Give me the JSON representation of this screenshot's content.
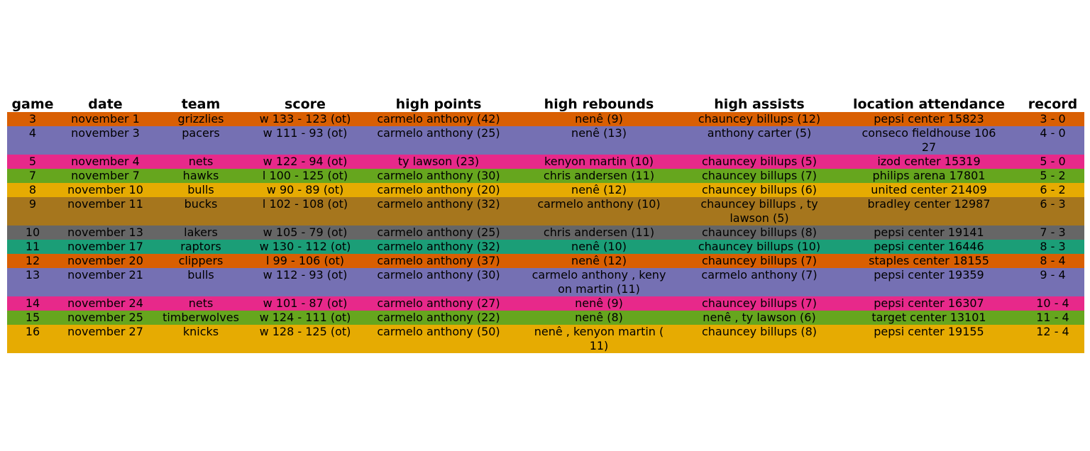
{
  "chart_data": {
    "type": "table",
    "columns": [
      "game",
      "date",
      "team",
      "score",
      "high points",
      "high rebounds",
      "high assists",
      "location attendance",
      "record"
    ],
    "rows": [
      {
        "cells": [
          "3",
          "november 1",
          "grizzlies",
          "w 133 - 123 (ot)",
          "carmelo anthony (42)",
          "nenê (9)",
          "chauncey billups (12)",
          "pepsi center 15823",
          "3 - 0"
        ],
        "color": "#d95f02"
      },
      {
        "cells": [
          "4",
          "november 3",
          "pacers",
          "w 111 - 93 (ot)",
          "carmelo anthony (25)",
          "nenê (13)",
          "anthony carter (5)",
          "conseco fieldhouse 106\n27",
          "4 - 0"
        ],
        "color": "#7570b3"
      },
      {
        "cells": [
          "5",
          "november 4",
          "nets",
          "w 122 - 94 (ot)",
          "ty lawson (23)",
          "kenyon martin (10)",
          "chauncey billups (5)",
          "izod center 15319",
          "5 - 0"
        ],
        "color": "#e7298a"
      },
      {
        "cells": [
          "7",
          "november 7",
          "hawks",
          "l 100 - 125 (ot)",
          "carmelo anthony (30)",
          "chris andersen (11)",
          "chauncey billups (7)",
          "philips arena 17801",
          "5 - 2"
        ],
        "color": "#66a61e"
      },
      {
        "cells": [
          "8",
          "november 10",
          "bulls",
          "w 90 - 89 (ot)",
          "carmelo anthony (20)",
          "nenê (12)",
          "chauncey billups (6)",
          "united center 21409",
          "6 - 2"
        ],
        "color": "#e6ab02"
      },
      {
        "cells": [
          "9",
          "november 11",
          "bucks",
          "l 102 - 108 (ot)",
          "carmelo anthony (32)",
          "carmelo anthony (10)",
          "chauncey billups , ty\nlawson (5)",
          "bradley center 12987",
          "6 - 3"
        ],
        "color": "#a6761d"
      },
      {
        "cells": [
          "10",
          "november 13",
          "lakers",
          "w 105 - 79 (ot)",
          "carmelo anthony (25)",
          "chris andersen (11)",
          "chauncey billups (8)",
          "pepsi center 19141",
          "7 - 3"
        ],
        "color": "#666666"
      },
      {
        "cells": [
          "11",
          "november 17",
          "raptors",
          "w 130 - 112 (ot)",
          "carmelo anthony (32)",
          "nenê (10)",
          "chauncey billups (10)",
          "pepsi center 16446",
          "8 - 3"
        ],
        "color": "#1b9e77"
      },
      {
        "cells": [
          "12",
          "november 20",
          "clippers",
          "l 99 - 106 (ot)",
          "carmelo anthony (37)",
          "nenê (12)",
          "chauncey billups (7)",
          "staples center 18155",
          "8 - 4"
        ],
        "color": "#d95f02"
      },
      {
        "cells": [
          "13",
          "november 21",
          "bulls",
          "w 112 - 93 (ot)",
          "carmelo anthony (30)",
          "carmelo anthony , keny\non martin (11)",
          "carmelo anthony (7)",
          "pepsi center 19359",
          "9 - 4"
        ],
        "color": "#7570b3"
      },
      {
        "cells": [
          "14",
          "november 24",
          "nets",
          "w 101 - 87 (ot)",
          "carmelo anthony (27)",
          "nenê (9)",
          "chauncey billups (7)",
          "pepsi center 16307",
          "10 - 4"
        ],
        "color": "#e7298a"
      },
      {
        "cells": [
          "15",
          "november 25",
          "timberwolves",
          "w 124 - 111 (ot)",
          "carmelo anthony (22)",
          "nenê (8)",
          "nenê , ty lawson (6)",
          "target center 13101",
          "11 - 4"
        ],
        "color": "#66a61e"
      },
      {
        "cells": [
          "16",
          "november 27",
          "knicks",
          "w 128 - 125 (ot)",
          "carmelo anthony (50)",
          "nenê , kenyon martin (\n11)",
          "chauncey billups (8)",
          "pepsi center 19155",
          "12 - 4"
        ],
        "color": "#e6ab02"
      }
    ]
  }
}
